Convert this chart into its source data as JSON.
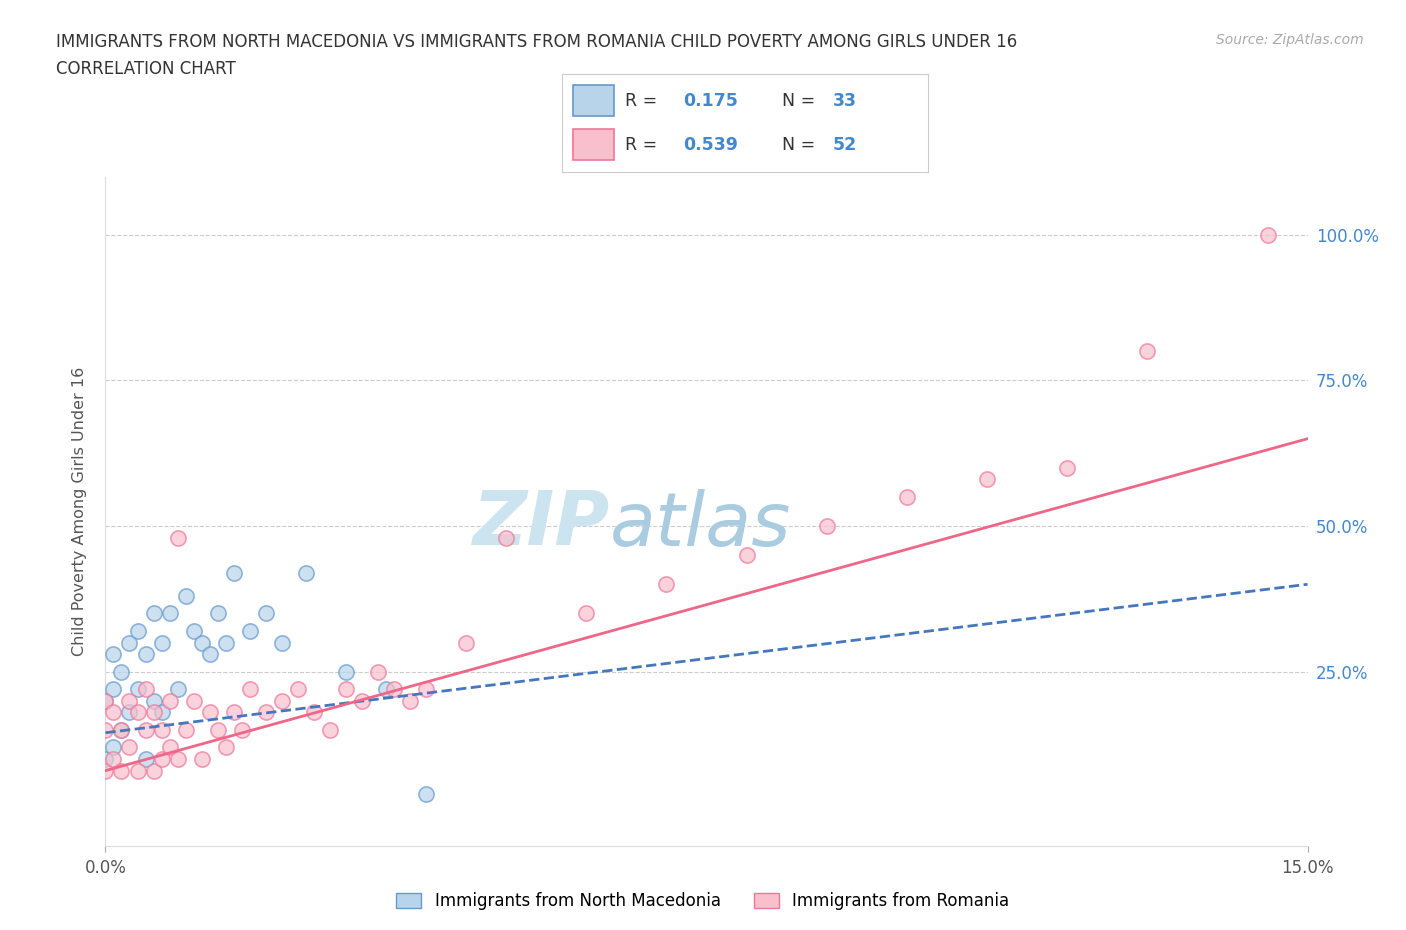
{
  "title_line1": "IMMIGRANTS FROM NORTH MACEDONIA VS IMMIGRANTS FROM ROMANIA CHILD POVERTY AMONG GIRLS UNDER 16",
  "title_line2": "CORRELATION CHART",
  "source_text": "Source: ZipAtlas.com",
  "ylabel": "Child Poverty Among Girls Under 16",
  "xlim": [
    0.0,
    0.15
  ],
  "ylim": [
    -0.05,
    1.1
  ],
  "yticks": [
    0.25,
    0.5,
    0.75,
    1.0
  ],
  "ytick_labels": [
    "25.0%",
    "50.0%",
    "75.0%",
    "100.0%"
  ],
  "color_mac_fill": "#b8d4ea",
  "color_mac_edge": "#6699cc",
  "color_rom_fill": "#f7c0cc",
  "color_rom_edge": "#ee7799",
  "color_line_blue": "#4477bb",
  "color_line_pink": "#ee6688",
  "color_text_blue": "#4488cc",
  "color_watermark": "#cce4f0",
  "color_grid": "#cccccc",
  "legend_label_1": "Immigrants from North Macedonia",
  "legend_label_2": "Immigrants from Romania",
  "nm_x": [
    0.0,
    0.0,
    0.001,
    0.001,
    0.001,
    0.002,
    0.002,
    0.003,
    0.003,
    0.004,
    0.004,
    0.005,
    0.005,
    0.006,
    0.006,
    0.007,
    0.007,
    0.008,
    0.009,
    0.01,
    0.011,
    0.012,
    0.013,
    0.014,
    0.015,
    0.016,
    0.018,
    0.02,
    0.022,
    0.025,
    0.03,
    0.035,
    0.04
  ],
  "nm_y": [
    0.1,
    0.2,
    0.12,
    0.22,
    0.28,
    0.15,
    0.25,
    0.18,
    0.3,
    0.22,
    0.32,
    0.1,
    0.28,
    0.2,
    0.35,
    0.18,
    0.3,
    0.35,
    0.22,
    0.38,
    0.32,
    0.3,
    0.28,
    0.35,
    0.3,
    0.42,
    0.32,
    0.35,
    0.3,
    0.42,
    0.25,
    0.22,
    0.04
  ],
  "ro_x": [
    0.0,
    0.0,
    0.0,
    0.001,
    0.001,
    0.002,
    0.002,
    0.003,
    0.003,
    0.004,
    0.004,
    0.005,
    0.005,
    0.006,
    0.006,
    0.007,
    0.007,
    0.008,
    0.008,
    0.009,
    0.009,
    0.01,
    0.011,
    0.012,
    0.013,
    0.014,
    0.015,
    0.016,
    0.017,
    0.018,
    0.02,
    0.022,
    0.024,
    0.026,
    0.028,
    0.03,
    0.032,
    0.034,
    0.036,
    0.038,
    0.04,
    0.045,
    0.05,
    0.06,
    0.07,
    0.08,
    0.09,
    0.1,
    0.11,
    0.12,
    0.13,
    0.145
  ],
  "ro_y": [
    0.08,
    0.15,
    0.2,
    0.1,
    0.18,
    0.08,
    0.15,
    0.12,
    0.2,
    0.08,
    0.18,
    0.15,
    0.22,
    0.08,
    0.18,
    0.1,
    0.15,
    0.12,
    0.2,
    0.48,
    0.1,
    0.15,
    0.2,
    0.1,
    0.18,
    0.15,
    0.12,
    0.18,
    0.15,
    0.22,
    0.18,
    0.2,
    0.22,
    0.18,
    0.15,
    0.22,
    0.2,
    0.25,
    0.22,
    0.2,
    0.22,
    0.3,
    0.48,
    0.35,
    0.4,
    0.45,
    0.5,
    0.55,
    0.58,
    0.6,
    0.8,
    1.0
  ],
  "line_nm_x0": 0.0,
  "line_nm_y0": 0.145,
  "line_nm_x1": 0.15,
  "line_nm_y1": 0.4,
  "line_ro_x0": 0.0,
  "line_ro_y0": 0.08,
  "line_ro_x1": 0.15,
  "line_ro_y1": 0.65
}
